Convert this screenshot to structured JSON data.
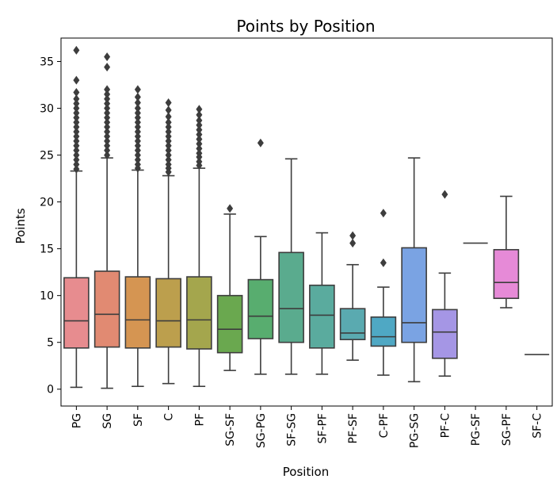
{
  "chart_data": {
    "type": "box",
    "title": "Points by Position",
    "xlabel": "Position",
    "ylabel": "Points",
    "ylim": [
      -1.8,
      37.5
    ],
    "yticks": [
      0,
      5,
      10,
      15,
      20,
      25,
      30,
      35
    ],
    "grid": false,
    "categories": [
      "PG",
      "SG",
      "SF",
      "C",
      "PF",
      "SG-SF",
      "SG-PG",
      "SF-SG",
      "SF-PF",
      "PF-SF",
      "C-PF",
      "PG-SG",
      "PF-C",
      "PG-SF",
      "SG-PF",
      "SF-C"
    ],
    "colors": [
      "#e78c8f",
      "#e18a72",
      "#d59552",
      "#bc9f4d",
      "#a4a64d",
      "#6aa84f",
      "#58ad6f",
      "#5aab8e",
      "#5aab9e",
      "#5aaab0",
      "#4fa8c4",
      "#7aa3e3",
      "#a596e5",
      "#c886e1",
      "#e68ad7",
      "#ea89b6"
    ],
    "boxes": [
      {
        "min": 0.2,
        "q1": 4.4,
        "median": 7.3,
        "q3": 11.9,
        "max": 23.3,
        "outliers": [
          23.5,
          24.0,
          24.5,
          25.0,
          25.5,
          26.0,
          26.5,
          27.0,
          27.5,
          28.0,
          28.5,
          29.0,
          29.5,
          30.0,
          30.5,
          31.0,
          31.7,
          33.0,
          36.2
        ]
      },
      {
        "min": 0.1,
        "q1": 4.5,
        "median": 8.0,
        "q3": 12.6,
        "max": 24.7,
        "outliers": [
          25.0,
          25.5,
          26.0,
          26.5,
          27.0,
          27.5,
          28.0,
          28.5,
          29.0,
          29.5,
          30.0,
          30.5,
          31.0,
          31.5,
          32.0,
          34.4,
          35.5
        ]
      },
      {
        "min": 0.3,
        "q1": 4.4,
        "median": 7.4,
        "q3": 12.0,
        "max": 23.4,
        "outliers": [
          23.6,
          24.0,
          24.5,
          25.0,
          25.5,
          26.0,
          26.5,
          27.0,
          27.5,
          28.0,
          28.5,
          29.0,
          29.5,
          30.0,
          30.6,
          31.2,
          32.0
        ]
      },
      {
        "min": 0.6,
        "q1": 4.5,
        "median": 7.3,
        "q3": 11.8,
        "max": 22.8,
        "outliers": [
          23.2,
          23.6,
          24.0,
          24.5,
          25.0,
          25.5,
          26.0,
          26.5,
          27.0,
          27.5,
          28.0,
          28.5,
          29.1,
          29.8,
          30.6
        ]
      },
      {
        "min": 0.3,
        "q1": 4.3,
        "median": 7.4,
        "q3": 12.0,
        "max": 23.6,
        "outliers": [
          23.9,
          24.3,
          24.8,
          25.2,
          25.7,
          26.2,
          26.7,
          27.2,
          27.7,
          28.2,
          28.7,
          29.3,
          29.9
        ]
      },
      {
        "min": 2.0,
        "q1": 3.9,
        "median": 6.4,
        "q3": 10.0,
        "max": 18.7,
        "outliers": [
          19.3
        ]
      },
      {
        "min": 1.6,
        "q1": 5.4,
        "median": 7.8,
        "q3": 11.7,
        "max": 16.3,
        "outliers": [
          26.3
        ]
      },
      {
        "min": 1.6,
        "q1": 5.0,
        "median": 8.6,
        "q3": 14.6,
        "max": 24.6,
        "outliers": []
      },
      {
        "min": 1.6,
        "q1": 4.4,
        "median": 7.9,
        "q3": 11.1,
        "max": 16.7,
        "outliers": []
      },
      {
        "min": 3.1,
        "q1": 5.3,
        "median": 6.0,
        "q3": 8.6,
        "max": 13.3,
        "outliers": [
          15.6,
          16.4
        ]
      },
      {
        "min": 1.5,
        "q1": 4.6,
        "median": 5.6,
        "q3": 7.7,
        "max": 10.9,
        "outliers": [
          13.5,
          18.8
        ]
      },
      {
        "min": 0.8,
        "q1": 5.0,
        "median": 7.1,
        "q3": 15.1,
        "max": 24.7,
        "outliers": []
      },
      {
        "min": 1.4,
        "q1": 3.3,
        "median": 6.1,
        "q3": 8.5,
        "max": 12.4,
        "outliers": [
          20.8
        ]
      },
      {
        "min": 15.6,
        "q1": 15.6,
        "median": 15.6,
        "q3": 15.6,
        "max": 15.6,
        "outliers": []
      },
      {
        "min": 8.7,
        "q1": 9.7,
        "median": 11.4,
        "q3": 14.9,
        "max": 20.6,
        "outliers": []
      },
      {
        "min": 3.7,
        "q1": 3.7,
        "median": 3.7,
        "q3": 3.7,
        "max": 3.7,
        "outliers": []
      }
    ]
  }
}
